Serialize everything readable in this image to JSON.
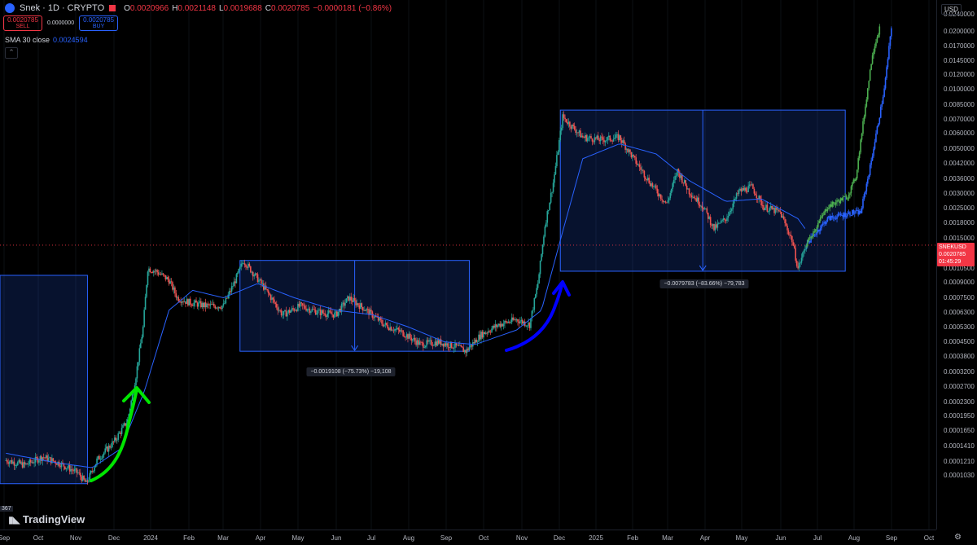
{
  "header": {
    "title": "Snek · 1D · CRYPTO",
    "ohlc": [
      {
        "k": "O",
        "v": "0.0020966"
      },
      {
        "k": "H",
        "v": "0.0021148"
      },
      {
        "k": "L",
        "v": "0.0019688"
      },
      {
        "k": "C",
        "v": "0.0020785"
      },
      {
        "k": "",
        "v": "−0.0000181 (−0.86%)"
      }
    ]
  },
  "trade": {
    "sell_price": "0.0020785",
    "sell_label": "SELL",
    "spread": "0.0000000",
    "buy_price": "0.0020785",
    "buy_label": "BUY"
  },
  "indicator": {
    "name": "SMA 30 close",
    "value": "0.0024594"
  },
  "axis": {
    "currency": "USD",
    "price_tag_symbol": "SNEKUSD",
    "price_tag_value": "0.0020785",
    "price_tag_timer": "01:45:29",
    "yticks": [
      "0.0240000",
      "0.0200000",
      "0.0170000",
      "0.0145000",
      "0.0120000",
      "0.0100000",
      "0.0085000",
      "0.0070000",
      "0.0060000",
      "0.0050000",
      "0.0042000",
      "0.0036000",
      "0.0030000",
      "0.0025000",
      "0.0018000",
      "0.0015000",
      "0.0012500",
      "0.0010500",
      "0.0009000",
      "0.0007500",
      "0.0006300",
      "0.0005300",
      "0.0004500",
      "0.0003800",
      "0.0003200",
      "0.0002700",
      "0.0002300",
      "0.0001950",
      "0.0001650",
      "0.0001410",
      "0.0001210",
      "0.0001030"
    ],
    "xticks": [
      "Sep",
      "Oct",
      "Nov",
      "Dec",
      "2024",
      "Feb",
      "Mar",
      "Apr",
      "May",
      "Jun",
      "Jul",
      "Aug",
      "Sep",
      "Oct",
      "Nov",
      "Dec",
      "2025",
      "Feb",
      "Mar",
      "Apr",
      "May",
      "Jun",
      "Jul",
      "Aug",
      "Sep",
      "Oct"
    ]
  },
  "measures": [
    {
      "label": "−0.0019108 (−75.73%) −19,108"
    },
    {
      "label": "−0.0079783 (−83.66%) −79,783"
    }
  ],
  "corner_label": "367",
  "brand": "TradingView",
  "colors": {
    "up": "#26a69a",
    "down": "#ef5350",
    "sma": "#2962ff",
    "box": "#2962ff",
    "green_arrow": "#00e600",
    "blue_arrow": "#0000ff",
    "projection_green": "#4caf50",
    "projection_blue": "#2962ff"
  },
  "chart_data": {
    "type": "candlestick",
    "symbol": "SNEKUSD",
    "timeframe": "1D",
    "yscale": "log",
    "ylim": [
      0.0001,
      0.024
    ],
    "xlim": [
      "2023-08-15",
      "2025-10-15"
    ],
    "close_path": [
      [
        "2023-08-20",
        0.000185
      ],
      [
        "2023-09-05",
        0.000175
      ],
      [
        "2023-09-20",
        0.000192
      ],
      [
        "2023-10-05",
        0.000178
      ],
      [
        "2023-10-20",
        0.00016
      ],
      [
        "2023-10-27",
        0.000142
      ],
      [
        "2023-11-05",
        0.000185
      ],
      [
        "2023-11-20",
        0.00023
      ],
      [
        "2023-12-01",
        0.00029
      ],
      [
        "2023-12-08",
        0.00048
      ],
      [
        "2023-12-14",
        0.00082
      ],
      [
        "2023-12-18",
        0.0016
      ],
      [
        "2023-12-25",
        0.00155
      ],
      [
        "2024-01-05",
        0.0014
      ],
      [
        "2024-01-12",
        0.00115
      ],
      [
        "2024-01-20",
        0.0011
      ],
      [
        "2024-02-05",
        0.00105
      ],
      [
        "2024-02-20",
        0.00105
      ],
      [
        "2024-03-01",
        0.0014
      ],
      [
        "2024-03-08",
        0.00175
      ],
      [
        "2024-03-15",
        0.00155
      ],
      [
        "2024-03-25",
        0.0013
      ],
      [
        "2024-04-10",
        0.00095
      ],
      [
        "2024-04-25",
        0.00105
      ],
      [
        "2024-05-10",
        0.00098
      ],
      [
        "2024-05-25",
        0.00095
      ],
      [
        "2024-06-05",
        0.00115
      ],
      [
        "2024-06-20",
        0.001
      ],
      [
        "2024-07-05",
        0.00085
      ],
      [
        "2024-07-20",
        0.00078
      ],
      [
        "2024-08-05",
        0.00068
      ],
      [
        "2024-08-20",
        0.0007
      ],
      [
        "2024-09-05",
        0.00066
      ],
      [
        "2024-09-12",
        0.00063
      ],
      [
        "2024-09-25",
        0.00076
      ],
      [
        "2024-10-10",
        0.00085
      ],
      [
        "2024-10-25",
        0.0009
      ],
      [
        "2024-11-05",
        0.00085
      ],
      [
        "2024-11-12",
        0.00135
      ],
      [
        "2024-11-18",
        0.0026
      ],
      [
        "2024-11-25",
        0.0042
      ],
      [
        "2024-12-03",
        0.0088
      ],
      [
        "2024-12-10",
        0.008
      ],
      [
        "2024-12-20",
        0.007
      ],
      [
        "2025-01-05",
        0.0068
      ],
      [
        "2025-01-20",
        0.007
      ],
      [
        "2025-02-01",
        0.0055
      ],
      [
        "2025-02-15",
        0.0042
      ],
      [
        "2025-03-01",
        0.0033
      ],
      [
        "2025-03-10",
        0.0048
      ],
      [
        "2025-03-20",
        0.0038
      ],
      [
        "2025-04-01",
        0.0032
      ],
      [
        "2025-04-10",
        0.0025
      ],
      [
        "2025-04-20",
        0.0028
      ],
      [
        "2025-05-01",
        0.0038
      ],
      [
        "2025-05-12",
        0.004
      ],
      [
        "2025-05-22",
        0.0032
      ],
      [
        "2025-06-05",
        0.003
      ],
      [
        "2025-06-15",
        0.0022
      ],
      [
        "2025-06-20",
        0.0016
      ],
      [
        "2025-06-27",
        0.0021
      ]
    ],
    "sma30_path": [
      [
        "2023-08-20",
        0.0002
      ],
      [
        "2023-10-01",
        0.00018
      ],
      [
        "2023-11-01",
        0.00017
      ],
      [
        "2023-11-25",
        0.00021
      ],
      [
        "2023-12-15",
        0.0004
      ],
      [
        "2024-01-05",
        0.001
      ],
      [
        "2024-01-25",
        0.00125
      ],
      [
        "2024-02-20",
        0.00115
      ],
      [
        "2024-03-20",
        0.00135
      ],
      [
        "2024-04-20",
        0.00115
      ],
      [
        "2024-05-25",
        0.001
      ],
      [
        "2024-06-25",
        0.00095
      ],
      [
        "2024-07-25",
        0.00083
      ],
      [
        "2024-08-25",
        0.0007
      ],
      [
        "2024-09-20",
        0.00068
      ],
      [
        "2024-10-25",
        0.0008
      ],
      [
        "2024-11-15",
        0.001
      ],
      [
        "2024-12-01",
        0.0022
      ],
      [
        "2024-12-20",
        0.0055
      ],
      [
        "2025-01-20",
        0.0065
      ],
      [
        "2025-02-20",
        0.0058
      ],
      [
        "2025-03-20",
        0.0043
      ],
      [
        "2025-04-20",
        0.0034
      ],
      [
        "2025-05-20",
        0.0035
      ],
      [
        "2025-06-20",
        0.0028
      ],
      [
        "2025-06-27",
        0.002459
      ]
    ],
    "projection_green": [
      [
        "2025-06-27",
        0.0021
      ],
      [
        "2025-07-15",
        0.0032
      ],
      [
        "2025-08-01",
        0.0036
      ],
      [
        "2025-08-08",
        0.0045
      ],
      [
        "2025-08-15",
        0.009
      ],
      [
        "2025-08-22",
        0.018
      ],
      [
        "2025-08-28",
        0.024
      ]
    ],
    "projection_blue": [
      [
        "2025-06-27",
        0.0021
      ],
      [
        "2025-07-15",
        0.0028
      ],
      [
        "2025-08-05",
        0.003
      ],
      [
        "2025-08-12",
        0.003
      ],
      [
        "2025-08-20",
        0.005
      ],
      [
        "2025-09-01",
        0.012
      ],
      [
        "2025-09-07",
        0.024
      ]
    ],
    "range_boxes": [
      {
        "x0": "2023-08-15",
        "x1": "2023-10-28",
        "y_top": 0.00148,
        "y_bottom": 0.000142
      },
      {
        "x0": "2024-03-05",
        "x1": "2024-09-15",
        "y_top": 0.00175,
        "y_bottom": 0.00063
      },
      {
        "x0": "2024-12-01",
        "x1": "2025-07-30",
        "y_top": 0.0095,
        "y_bottom": 0.00155
      }
    ],
    "current_price": 0.0020785
  }
}
